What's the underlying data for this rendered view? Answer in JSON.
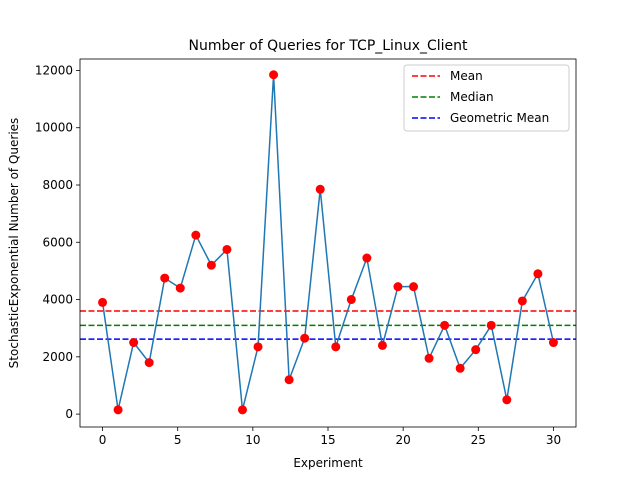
{
  "chart_data": {
    "type": "line",
    "title": "Number of Queries for TCP_Linux_Client",
    "xlabel": "Experiment",
    "ylabel": "StochasticExponential Number of Queries",
    "xlim": [
      -1.5,
      31.5
    ],
    "ylim": [
      -450,
      12400
    ],
    "xticks": [
      0,
      5,
      10,
      15,
      20,
      25,
      30
    ],
    "yticks": [
      0,
      2000,
      4000,
      6000,
      8000,
      10000,
      12000
    ],
    "legend_position": "top-right",
    "grid": false,
    "series": [
      {
        "color": "#1f77b4",
        "marker_color": "#ff0000",
        "x": [
          0.0,
          1.034,
          2.069,
          3.103,
          4.138,
          5.172,
          6.207,
          7.241,
          8.276,
          9.31,
          10.345,
          11.379,
          12.414,
          13.448,
          14.483,
          15.517,
          16.552,
          17.586,
          18.621,
          19.655,
          20.69,
          21.724,
          22.759,
          23.793,
          24.828,
          25.862,
          26.897,
          27.931,
          28.966,
          30.0
        ],
        "values": [
          3900,
          150,
          2500,
          1800,
          4750,
          4400,
          6250,
          5200,
          5750,
          150,
          2350,
          11850,
          1200,
          2650,
          7850,
          2350,
          4000,
          5450,
          2400,
          4450,
          4450,
          1950,
          3100,
          1600,
          2250,
          3100,
          500,
          3950,
          4900,
          2500
        ]
      }
    ],
    "reference_lines": [
      {
        "name": "Mean",
        "value": 3600,
        "color": "#ff0000"
      },
      {
        "name": "Median",
        "value": 3100,
        "color": "#008000"
      },
      {
        "name": "Geometric Mean",
        "value": 2620,
        "color": "#0000ff"
      }
    ]
  }
}
